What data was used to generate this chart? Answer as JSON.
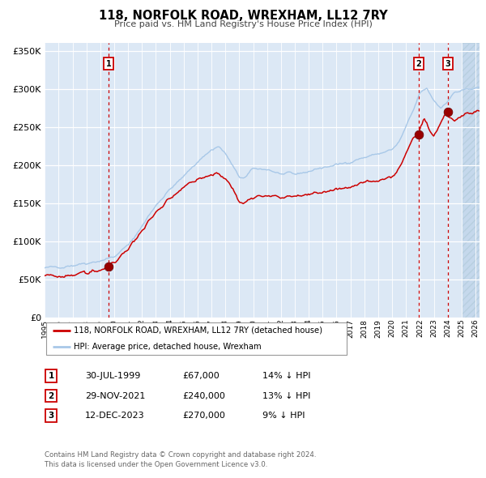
{
  "title": "118, NORFOLK ROAD, WREXHAM, LL12 7RY",
  "subtitle": "Price paid vs. HM Land Registry's House Price Index (HPI)",
  "legend_line1": "118, NORFOLK ROAD, WREXHAM, LL12 7RY (detached house)",
  "legend_line2": "HPI: Average price, detached house, Wrexham",
  "sale1_date": "30-JUL-1999",
  "sale1_price": 67000,
  "sale1_label": "14% ↓ HPI",
  "sale2_date": "29-NOV-2021",
  "sale2_price": 240000,
  "sale2_label": "13% ↓ HPI",
  "sale3_date": "12-DEC-2023",
  "sale3_price": 270000,
  "sale3_label": "9% ↓ HPI",
  "footer1": "Contains HM Land Registry data © Crown copyright and database right 2024.",
  "footer2": "This data is licensed under the Open Government Licence v3.0.",
  "hpi_color": "#a8c8e8",
  "sale_color": "#cc0000",
  "dot_color": "#990000",
  "vline_color": "#cc0000",
  "bg_color": "#dce8f5",
  "hatch_color": "#c5d8ec",
  "grid_color": "#ffffff",
  "ylim": [
    0,
    360000
  ],
  "xlim_start": 1995.0,
  "xlim_end": 2026.3
}
